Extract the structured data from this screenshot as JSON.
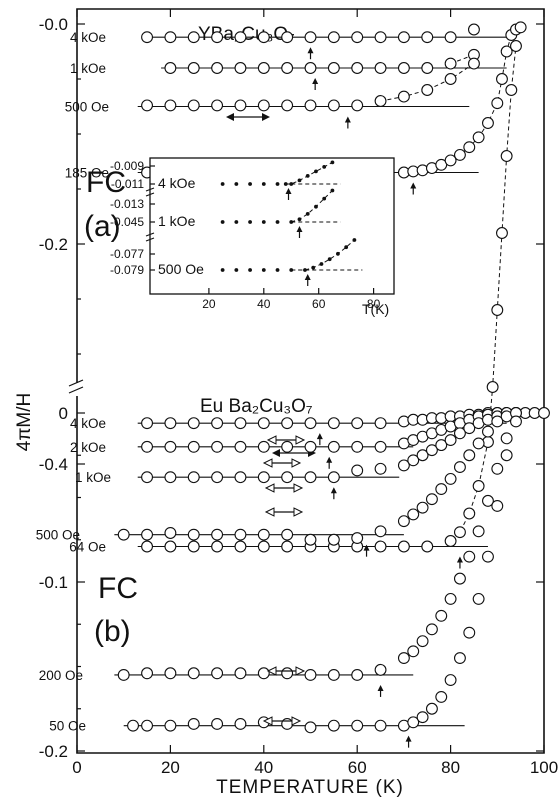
{
  "chart_data": {
    "type": "scatter",
    "xlabel": "TEMPERATURE (K)",
    "ylabel": "4πM/H",
    "xlim": [
      0,
      100
    ],
    "xticks": [
      "0",
      "20",
      "40",
      "60",
      "80",
      "100"
    ],
    "panels": [
      {
        "id": "a",
        "compound": "YBa₂Cu₃O₇",
        "label_line1": "FC",
        "label_line2": "(a)",
        "ylim": [
          -0.5,
          0.02
        ],
        "yticks": [
          "-0.0",
          "-0.2",
          "-0.4"
        ],
        "series": [
          {
            "name": "4 kOe",
            "x": [
              15,
              20,
              25,
              30,
              35,
              40,
              45,
              50,
              55,
              60,
              65,
              70,
              75,
              80,
              85
            ],
            "y": [
              -0.012,
              -0.012,
              -0.012,
              -0.012,
              -0.012,
              -0.012,
              -0.012,
              -0.012,
              -0.012,
              -0.012,
              -0.012,
              -0.012,
              -0.012,
              -0.012,
              -0.005
            ],
            "fit_x": [
              15,
              92
            ],
            "fit_y": -0.012,
            "arrow_T": 50
          },
          {
            "name": "1 kOe",
            "x": [
              20,
              25,
              30,
              35,
              40,
              45,
              50,
              55,
              60,
              65,
              70,
              75,
              80,
              85
            ],
            "y": [
              -0.04,
              -0.04,
              -0.04,
              -0.04,
              -0.04,
              -0.04,
              -0.04,
              -0.04,
              -0.04,
              -0.04,
              -0.04,
              -0.04,
              -0.036,
              -0.028
            ],
            "fit_x": [
              18,
              92
            ],
            "fit_y": -0.04,
            "arrow_T": 51
          },
          {
            "name": "500 Oe",
            "x": [
              15,
              20,
              25,
              30,
              35,
              40,
              45,
              50,
              55,
              60,
              65,
              70,
              75,
              80,
              85
            ],
            "y": [
              -0.074,
              -0.074,
              -0.074,
              -0.074,
              -0.074,
              -0.074,
              -0.074,
              -0.074,
              -0.074,
              -0.074,
              -0.07,
              -0.066,
              -0.06,
              -0.05,
              -0.036
            ],
            "fit_x": [
              13,
              84
            ],
            "fit_y": -0.075,
            "arrow_T": 58
          },
          {
            "name": "185 Oe",
            "x": [
              15,
              20,
              25,
              30,
              35,
              40,
              45,
              50,
              55,
              60,
              65,
              70,
              72,
              74,
              76,
              78,
              80,
              82,
              84,
              86,
              88,
              90,
              91,
              92,
              93,
              94,
              95
            ],
            "y": [
              -0.135,
              -0.135,
              -0.135,
              -0.135,
              -0.135,
              -0.135,
              -0.135,
              -0.135,
              -0.135,
              -0.135,
              -0.135,
              -0.135,
              -0.134,
              -0.133,
              -0.131,
              -0.128,
              -0.124,
              -0.119,
              -0.112,
              -0.103,
              -0.09,
              -0.072,
              -0.05,
              -0.025,
              -0.01,
              -0.005,
              -0.003
            ],
            "fit_x": [
              13,
              86
            ],
            "fit_y": -0.135,
            "arrow_T": 72
          },
          {
            "name": "64 Oe",
            "x": [
              15,
              20,
              25,
              30,
              35,
              40,
              45,
              50,
              55,
              60,
              65,
              70,
              75,
              80,
              82,
              84,
              86,
              88,
              89,
              90,
              91,
              92,
              93,
              94
            ],
            "y": [
              -0.475,
              -0.475,
              -0.475,
              -0.475,
              -0.475,
              -0.475,
              -0.475,
              -0.475,
              -0.475,
              -0.475,
              -0.475,
              -0.475,
              -0.475,
              -0.47,
              -0.462,
              -0.445,
              -0.42,
              -0.38,
              -0.33,
              -0.26,
              -0.19,
              -0.12,
              -0.06,
              -0.02
            ],
            "fit_x": [
              13,
              88
            ],
            "fit_y": -0.475,
            "arrow_T": 82
          }
        ],
        "inset": {
          "xlabel": "T(K)",
          "xlim": [
            0,
            80
          ],
          "xticks": [
            "20",
            "40",
            "60",
            "80"
          ],
          "series": [
            {
              "name": "4 kOe",
              "yticks": [
                "-0.009",
                "-0.011"
              ],
              "x": [
                25,
                30,
                35,
                40,
                45,
                48,
                50,
                53,
                56,
                59,
                62,
                65
              ],
              "y": [
                -0.011,
                -0.011,
                -0.011,
                -0.011,
                -0.011,
                -0.011,
                -0.011,
                -0.0106,
                -0.0101,
                -0.0096,
                -0.0091,
                -0.0086
              ]
            },
            {
              "name": "1 kOe",
              "yticks": [
                "-0.013",
                "-0.045"
              ],
              "x": [
                25,
                30,
                35,
                40,
                45,
                50,
                53,
                56,
                59,
                62,
                65
              ],
              "y": [
                -0.045,
                -0.045,
                -0.045,
                -0.045,
                -0.045,
                -0.045,
                -0.0447,
                -0.0441,
                -0.0433,
                -0.0424,
                -0.0415
              ]
            },
            {
              "name": "500 Oe",
              "yticks": [
                "-0.077",
                "-0.079"
              ],
              "x": [
                25,
                30,
                35,
                40,
                45,
                50,
                55,
                58,
                61,
                64,
                67,
                70,
                73
              ],
              "y": [
                -0.079,
                -0.079,
                -0.079,
                -0.079,
                -0.079,
                -0.079,
                -0.079,
                -0.0786,
                -0.078,
                -0.0772,
                -0.0763,
                -0.0752,
                -0.074
              ]
            }
          ]
        }
      },
      {
        "id": "b",
        "compound": "Eu Ba₂Cu₃O₇",
        "label_line1": "FC",
        "label_line2": "(b)",
        "ylim": [
          -0.205,
          0.01
        ],
        "yticks": [
          "0",
          "-0.1",
          "-0.2"
        ],
        "series": [
          {
            "name": "4 kOe",
            "x": [
              15,
              20,
              25,
              30,
              35,
              40,
              45,
              50,
              55,
              60,
              65,
              70,
              72,
              74,
              76,
              78,
              80,
              82,
              84,
              86,
              88,
              90,
              92,
              94,
              96,
              98,
              100
            ],
            "y": [
              -0.006,
              -0.006,
              -0.006,
              -0.006,
              -0.006,
              -0.006,
              -0.006,
              -0.006,
              -0.006,
              -0.006,
              -0.006,
              -0.005,
              -0.004,
              -0.004,
              -0.003,
              -0.003,
              -0.002,
              -0.002,
              -0.001,
              -0.001,
              0,
              0,
              0,
              0,
              0,
              0,
              0
            ],
            "fit_x": [
              13,
              92
            ],
            "fit_y": -0.006,
            "arrow_T": 52
          },
          {
            "name": "2 kOe",
            "x": [
              15,
              20,
              25,
              30,
              35,
              40,
              45,
              50,
              55,
              60,
              65,
              70,
              72,
              74,
              76,
              78,
              80,
              82,
              84,
              86,
              88,
              90,
              92,
              94
            ],
            "y": [
              -0.02,
              -0.02,
              -0.02,
              -0.02,
              -0.02,
              -0.02,
              -0.02,
              -0.02,
              -0.02,
              -0.02,
              -0.02,
              -0.018,
              -0.016,
              -0.014,
              -0.012,
              -0.01,
              -0.008,
              -0.006,
              -0.004,
              -0.002,
              -0.001,
              0,
              0,
              0
            ],
            "fit_x": [
              13,
              72
            ],
            "fit_y": -0.02,
            "arrow_T": 54
          },
          {
            "name": "1 kOe",
            "x": [
              15,
              20,
              25,
              30,
              35,
              40,
              45,
              50,
              55,
              60,
              65,
              70,
              72,
              74,
              76,
              78,
              80,
              82,
              84,
              86,
              88,
              90,
              92
            ],
            "y": [
              -0.038,
              -0.038,
              -0.038,
              -0.038,
              -0.038,
              -0.038,
              -0.038,
              -0.038,
              -0.038,
              -0.034,
              -0.033,
              -0.031,
              -0.028,
              -0.025,
              -0.022,
              -0.019,
              -0.016,
              -0.012,
              -0.009,
              -0.006,
              -0.004,
              -0.002,
              0
            ],
            "fit_x": [
              13,
              69
            ],
            "fit_y": -0.038,
            "arrow_T": 55
          },
          {
            "name": "500 Oe",
            "x": [
              10,
              15,
              20,
              25,
              30,
              35,
              40,
              45,
              50,
              55,
              60,
              65,
              70,
              72,
              74,
              76,
              78,
              80,
              82,
              84,
              86,
              88,
              90,
              92,
              94
            ],
            "y": [
              -0.072,
              -0.072,
              -0.071,
              -0.072,
              -0.072,
              -0.072,
              -0.072,
              -0.072,
              -0.075,
              -0.075,
              -0.074,
              -0.07,
              -0.064,
              -0.06,
              -0.056,
              -0.051,
              -0.045,
              -0.039,
              -0.032,
              -0.025,
              -0.018,
              -0.011,
              -0.005,
              -0.002,
              0
            ],
            "fit_x": [
              8,
              70
            ],
            "fit_y": -0.072,
            "arrow_T": 62
          },
          {
            "name": "200 Oe",
            "x": [
              10,
              15,
              20,
              25,
              30,
              35,
              40,
              45,
              50,
              55,
              60,
              65,
              70,
              72,
              74,
              76,
              78,
              80,
              82,
              84,
              86,
              88,
              90,
              92
            ],
            "y": [
              -0.155,
              -0.154,
              -0.154,
              -0.154,
              -0.154,
              -0.154,
              -0.154,
              -0.154,
              -0.155,
              -0.155,
              -0.155,
              -0.152,
              -0.145,
              -0.141,
              -0.135,
              -0.128,
              -0.12,
              -0.11,
              -0.098,
              -0.085,
              -0.07,
              -0.052,
              -0.033,
              -0.015
            ],
            "fit_x": [
              8,
              72
            ],
            "fit_y": -0.155,
            "arrow_T": 65
          },
          {
            "name": "50 Oe",
            "x": [
              12,
              15,
              20,
              25,
              30,
              35,
              40,
              45,
              50,
              55,
              60,
              65,
              70,
              72,
              74,
              76,
              78,
              80,
              82,
              84,
              86,
              88,
              90,
              92,
              94
            ],
            "y": [
              -0.185,
              -0.185,
              -0.185,
              -0.184,
              -0.184,
              -0.184,
              -0.183,
              -0.184,
              -0.186,
              -0.185,
              -0.185,
              -0.185,
              -0.185,
              -0.183,
              -0.18,
              -0.175,
              -0.168,
              -0.158,
              -0.145,
              -0.13,
              -0.11,
              -0.085,
              -0.055,
              -0.025,
              -0.005
            ],
            "fit_x": [
              10,
              83
            ],
            "fit_y": -0.185,
            "arrow_T": 71
          }
        ]
      }
    ]
  }
}
